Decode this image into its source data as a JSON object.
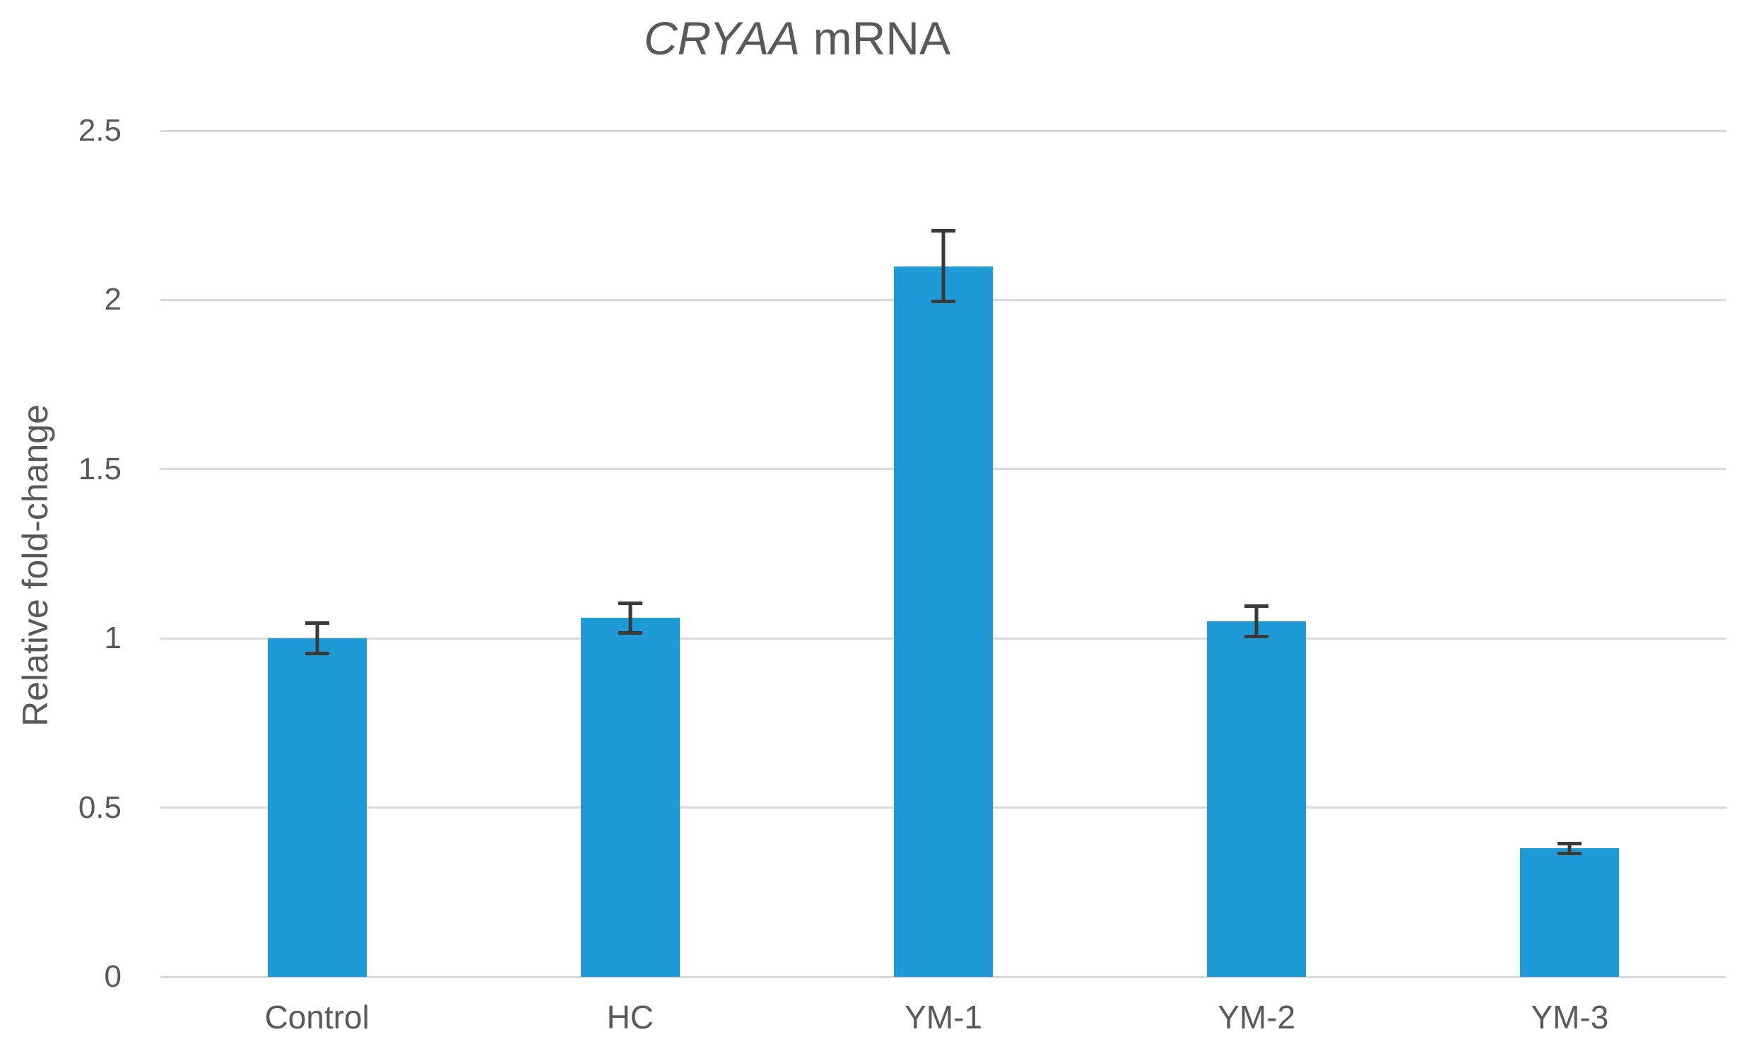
{
  "title": {
    "italic": "CRYAA",
    "rest": " mRNA"
  },
  "chart_data": {
    "type": "bar",
    "title": "CRYAA mRNA",
    "title_italic_part": "CRYAA",
    "title_regular_part": "mRNA",
    "categories": [
      "Control",
      "HC",
      "YM-1",
      "YM-2",
      "YM-3"
    ],
    "values": [
      1.0,
      1.06,
      2.1,
      1.05,
      0.38
    ],
    "errors": [
      0.05,
      0.05,
      0.11,
      0.05,
      0.02
    ],
    "xlabel": "",
    "ylabel": "Relative fold-change",
    "ylim": [
      0,
      2.5
    ],
    "yticks": [
      0,
      0.5,
      1,
      1.5,
      2,
      2.5
    ],
    "ytick_labels": [
      "0",
      "0.5",
      "1",
      "1.5",
      "2",
      "2.5"
    ],
    "grid": true,
    "legend": false,
    "colors": {
      "bar": "#1e9ad6",
      "error_bar": "#3a3a3a",
      "gridline": "#d9d9d9",
      "text": "#595959",
      "background": "#ffffff"
    }
  }
}
